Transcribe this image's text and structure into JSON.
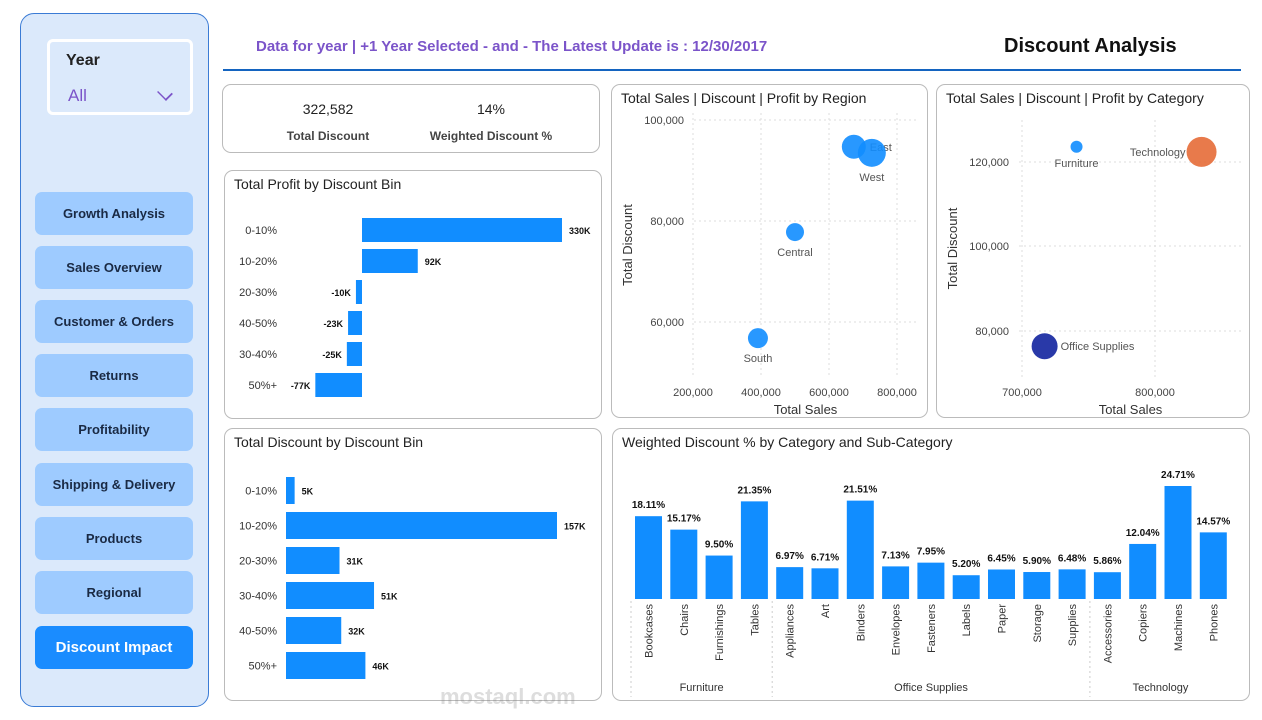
{
  "sidebar": {
    "year_label": "Year",
    "year_value": "All",
    "nav": [
      "Growth Analysis",
      "Sales Overview",
      "Customer & Orders",
      "Returns",
      "Profitability",
      "Shipping & Delivery",
      "Products",
      "Regional",
      "Discount Impact"
    ],
    "active": "Discount Impact"
  },
  "header": {
    "info": "Data for year | +1 Year Selected - and - The Latest Update is : 12/30/2017",
    "title": "Discount Analysis"
  },
  "kpis": {
    "total_discount": "322,582",
    "total_discount_label": "Total Discount",
    "weighted": "14%",
    "weighted_label": "Weighted Discount %"
  },
  "watermark": "mostaql.com",
  "chart_data": [
    {
      "type": "bar",
      "orientation": "horizontal",
      "title": "Total Profit by Discount Bin",
      "categories": [
        "0-10%",
        "10-20%",
        "20-30%",
        "40-50%",
        "30-40%",
        "50%+"
      ],
      "values": [
        330,
        92,
        -10,
        -23,
        -25,
        -77
      ],
      "labels": [
        "330K",
        "92K",
        "-10K",
        "-23K",
        "-25K",
        "-77K"
      ],
      "color": "#118dff"
    },
    {
      "type": "bar",
      "orientation": "horizontal",
      "title": "Total Discount by Discount Bin",
      "categories": [
        "0-10%",
        "10-20%",
        "20-30%",
        "30-40%",
        "40-50%",
        "50%+"
      ],
      "values": [
        5,
        157,
        31,
        51,
        32,
        46
      ],
      "labels": [
        "5K",
        "157K",
        "31K",
        "51K",
        "32K",
        "46K"
      ],
      "color": "#118dff"
    },
    {
      "type": "scatter",
      "title": "Total Sales | Discount | Profit by Region",
      "xlabel": "Total Sales",
      "ylabel": "Total Discount",
      "xticks": [
        "200,000",
        "400,000",
        "600,000",
        "800,000"
      ],
      "yticks": [
        "60,000",
        "80,000",
        "100,000"
      ],
      "points": [
        {
          "label": "East",
          "x": 673000,
          "y": 94700,
          "size": 12,
          "color": "#118dff"
        },
        {
          "label": "West",
          "x": 726000,
          "y": 93500,
          "size": 14,
          "color": "#118dff"
        },
        {
          "label": "Central",
          "x": 500000,
          "y": 77800,
          "size": 9,
          "color": "#118dff"
        },
        {
          "label": "South",
          "x": 391000,
          "y": 56800,
          "size": 10,
          "color": "#118dff"
        }
      ]
    },
    {
      "type": "scatter",
      "title": "Total Sales | Discount | Profit by Category",
      "xlabel": "Total Sales",
      "ylabel": "Total Discount",
      "xticks": [
        "700,000",
        "800,000"
      ],
      "yticks": [
        "80,000",
        "100,000",
        "120,000"
      ],
      "points": [
        {
          "label": "Furniture",
          "x": 741000,
          "y": 123600,
          "size": 6,
          "color": "#118dff"
        },
        {
          "label": "Technology",
          "x": 835000,
          "y": 122400,
          "size": 15,
          "color": "#e66c37"
        },
        {
          "label": "Office Supplies",
          "x": 717000,
          "y": 76400,
          "size": 13,
          "color": "#12239e"
        }
      ]
    },
    {
      "type": "bar",
      "title": "Weighted Discount % by Category and Sub-Category",
      "groups": [
        {
          "name": "Furniture",
          "items": [
            "Bookcases",
            "Chairs",
            "Furnishings",
            "Tables"
          ]
        },
        {
          "name": "Office Supplies",
          "items": [
            "Appliances",
            "Art",
            "Binders",
            "Envelopes",
            "Fasteners",
            "Labels",
            "Paper",
            "Storage",
            "Supplies"
          ]
        },
        {
          "name": "Technology",
          "items": [
            "Accessories",
            "Copiers",
            "Machines",
            "Phones"
          ]
        }
      ],
      "categories": [
        "Bookcases",
        "Chairs",
        "Furnishings",
        "Tables",
        "Appliances",
        "Art",
        "Binders",
        "Envelopes",
        "Fasteners",
        "Labels",
        "Paper",
        "Storage",
        "Supplies",
        "Accessories",
        "Copiers",
        "Machines",
        "Phones"
      ],
      "values": [
        18.11,
        15.17,
        9.5,
        21.35,
        6.97,
        6.71,
        21.51,
        7.13,
        7.95,
        5.2,
        6.45,
        5.9,
        6.48,
        5.86,
        12.04,
        24.71,
        14.57
      ],
      "labels": [
        "18.11%",
        "15.17%",
        "9.50%",
        "21.35%",
        "6.97%",
        "6.71%",
        "21.51%",
        "7.13%",
        "7.95%",
        "5.20%",
        "6.45%",
        "5.90%",
        "6.48%",
        "5.86%",
        "12.04%",
        "24.71%",
        "14.57%"
      ],
      "color": "#118dff"
    }
  ]
}
